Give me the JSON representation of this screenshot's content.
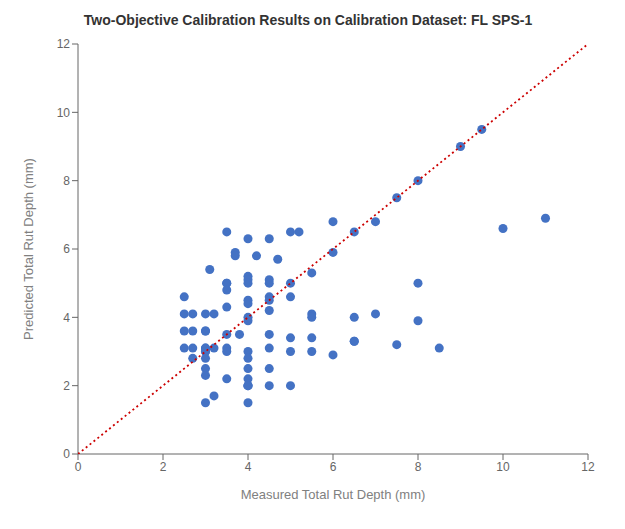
{
  "chart_data": {
    "type": "scatter",
    "title": "Two-Objective Calibration Results on Calibration Dataset: FL SPS-1",
    "xlabel": "Measured Total Rut Depth (mm)",
    "ylabel": "Predicted Total Rut Depth (mm)",
    "xlim": [
      0,
      12
    ],
    "ylim": [
      0,
      12
    ],
    "xticks": [
      0,
      2,
      4,
      6,
      8,
      10,
      12
    ],
    "yticks": [
      0,
      2,
      4,
      6,
      8,
      10,
      12
    ],
    "grid": false,
    "series": [
      {
        "type": "scatter",
        "marker": "circle",
        "color": "#4472c4",
        "x": [
          2.5,
          2.5,
          2.5,
          2.5,
          2.7,
          2.7,
          2.7,
          2.7,
          3.0,
          3.0,
          3.0,
          3.0,
          3.0,
          3.0,
          3.0,
          3.0,
          3.0,
          3.0,
          3.0,
          3.1,
          3.2,
          3.2,
          3.2,
          3.5,
          3.5,
          3.5,
          3.5,
          3.5,
          3.5,
          3.5,
          3.5,
          3.5,
          3.7,
          3.7,
          3.8,
          4.0,
          4.0,
          4.0,
          4.0,
          4.0,
          4.0,
          4.0,
          4.0,
          4.0,
          4.0,
          4.0,
          4.0,
          4.0,
          4.0,
          4.0,
          4.0,
          4.2,
          4.5,
          4.5,
          4.5,
          4.5,
          4.5,
          4.5,
          4.5,
          4.5,
          4.5,
          4.5,
          4.7,
          5.0,
          5.0,
          5.0,
          5.0,
          5.0,
          5.0,
          5.2,
          5.5,
          5.5,
          5.5,
          5.5,
          5.5,
          6.0,
          6.0,
          6.0,
          6.5,
          6.5,
          6.5,
          6.5,
          7.0,
          7.0,
          7.5,
          7.5,
          8.0,
          8.0,
          8.0,
          8.5,
          9.0,
          9.5,
          10.0,
          11.0
        ],
        "y": [
          4.6,
          4.1,
          3.6,
          3.1,
          4.1,
          3.6,
          3.1,
          2.8,
          4.1,
          3.6,
          3.6,
          3.1,
          3.1,
          3.0,
          3.0,
          2.8,
          2.5,
          2.3,
          1.5,
          5.4,
          4.1,
          3.1,
          1.7,
          6.5,
          5.0,
          5.0,
          4.8,
          4.3,
          3.5,
          3.1,
          3.0,
          2.2,
          5.9,
          5.8,
          3.5,
          6.3,
          5.2,
          5.1,
          5.0,
          4.5,
          4.4,
          4.0,
          3.9,
          3.0,
          2.8,
          2.5,
          2.2,
          2.0,
          2.0,
          2.0,
          1.5,
          5.8,
          6.3,
          5.1,
          5.0,
          4.6,
          4.5,
          4.2,
          3.5,
          3.1,
          2.5,
          2.0,
          5.7,
          6.5,
          5.0,
          4.6,
          3.4,
          3.0,
          2.0,
          6.5,
          5.3,
          4.1,
          4.0,
          3.4,
          3.0,
          6.8,
          5.9,
          2.9,
          6.5,
          4.0,
          3.3,
          3.3,
          6.8,
          4.1,
          7.5,
          3.2,
          8.0,
          5.0,
          3.9,
          3.1,
          9.0,
          9.5,
          6.6,
          6.9
        ]
      },
      {
        "type": "line",
        "line_style": "dotted",
        "color": "#cc0000",
        "x": [
          0,
          12
        ],
        "y": [
          0,
          12
        ]
      }
    ]
  }
}
